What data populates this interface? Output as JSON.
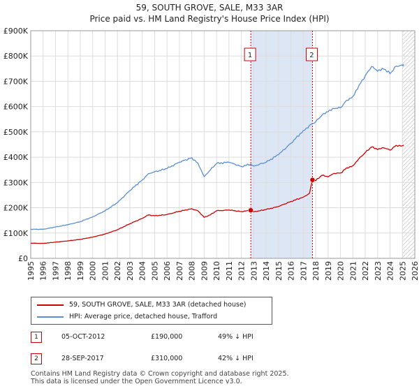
{
  "colors": {
    "property_line": "#cc0000",
    "hpi_line": "#5b8fd0",
    "shade": "#dce6f5",
    "grid": "#dddddd",
    "marker_border": "#cc0000"
  },
  "header": {
    "title_line1": "59, SOUTH GROVE, SALE, M33 3AR",
    "title_line2": "Price paid vs. HM Land Registry's House Price Index (HPI)"
  },
  "legend": {
    "property_label": "59, SOUTH GROVE, SALE, M33 3AR (detached house)",
    "hpi_label": "HPI: Average price, detached house, Trafford"
  },
  "transactions": [
    {
      "id": "1",
      "date": "05-OCT-2012",
      "price": "£190,000",
      "hpi_diff": "49% ↓ HPI"
    },
    {
      "id": "2",
      "date": "28-SEP-2017",
      "price": "£310,000",
      "hpi_diff": "42% ↓ HPI"
    }
  ],
  "footer": {
    "line1": "Contains HM Land Registry data © Crown copyright and database right 2025.",
    "line2": "This data is licensed under the Open Government Licence v3.0."
  },
  "chart_data": {
    "type": "line",
    "title": "Price paid vs. HM Land Registry's House Price Index (HPI)",
    "xlabel": "",
    "ylabel": "",
    "xlim": [
      1995,
      2026
    ],
    "ylim": [
      0,
      900000
    ],
    "x_ticks": [
      1995,
      1996,
      1997,
      1998,
      1999,
      2000,
      2001,
      2002,
      2003,
      2004,
      2005,
      2006,
      2007,
      2008,
      2009,
      2010,
      2011,
      2012,
      2013,
      2014,
      2015,
      2016,
      2017,
      2018,
      2019,
      2020,
      2021,
      2022,
      2023,
      2024,
      2025,
      2026
    ],
    "y_ticks": [
      {
        "value": 0,
        "label": "£0"
      },
      {
        "value": 100000,
        "label": "£100K"
      },
      {
        "value": 200000,
        "label": "£200K"
      },
      {
        "value": 300000,
        "label": "£300K"
      },
      {
        "value": 400000,
        "label": "£400K"
      },
      {
        "value": 500000,
        "label": "£500K"
      },
      {
        "value": 600000,
        "label": "£600K"
      },
      {
        "value": 700000,
        "label": "£700K"
      },
      {
        "value": 800000,
        "label": "£800K"
      },
      {
        "value": 900000,
        "label": "£900K"
      }
    ],
    "shaded_region": [
      2012.76,
      2017.74
    ],
    "forecast_start": 2025.0,
    "grid": true,
    "series": [
      {
        "name": "59, SOUTH GROVE, SALE, M33 3AR (detached house)",
        "points": [
          [
            1995.0,
            60000
          ],
          [
            1996.0,
            59000
          ],
          [
            1997.0,
            64000
          ],
          [
            1998.0,
            69000
          ],
          [
            1999.0,
            75000
          ],
          [
            2000.0,
            84000
          ],
          [
            2001.0,
            96000
          ],
          [
            2002.0,
            113000
          ],
          [
            2003.0,
            137000
          ],
          [
            2004.0,
            158000
          ],
          [
            2004.5,
            172000
          ],
          [
            2005.0,
            168000
          ],
          [
            2006.0,
            173000
          ],
          [
            2007.0,
            186000
          ],
          [
            2008.0,
            196000
          ],
          [
            2008.5,
            188000
          ],
          [
            2009.0,
            162000
          ],
          [
            2009.5,
            172000
          ],
          [
            2010.0,
            188000
          ],
          [
            2011.0,
            191000
          ],
          [
            2012.0,
            185000
          ],
          [
            2012.76,
            190000
          ],
          [
            2013.0,
            184000
          ],
          [
            2014.0,
            193000
          ],
          [
            2015.0,
            205000
          ],
          [
            2016.0,
            225000
          ],
          [
            2017.0,
            242000
          ],
          [
            2017.5,
            257000
          ],
          [
            2017.74,
            310000
          ],
          [
            2018.0,
            307000
          ],
          [
            2018.5,
            328000
          ],
          [
            2019.0,
            322000
          ],
          [
            2019.5,
            336000
          ],
          [
            2020.0,
            337000
          ],
          [
            2020.5,
            358000
          ],
          [
            2021.0,
            366000
          ],
          [
            2021.5,
            395000
          ],
          [
            2022.0,
            418000
          ],
          [
            2022.5,
            440000
          ],
          [
            2023.0,
            430000
          ],
          [
            2023.5,
            437000
          ],
          [
            2024.0,
            428000
          ],
          [
            2024.5,
            447000
          ],
          [
            2025.0,
            445000
          ],
          [
            2025.1,
            448000
          ]
        ]
      },
      {
        "name": "HPI: Average price, detached house, Trafford",
        "points": [
          [
            1995.0,
            115000
          ],
          [
            1996.0,
            115000
          ],
          [
            1997.0,
            124000
          ],
          [
            1998.0,
            133000
          ],
          [
            1999.0,
            145000
          ],
          [
            2000.0,
            164000
          ],
          [
            2001.0,
            188000
          ],
          [
            2002.0,
            220000
          ],
          [
            2003.0,
            268000
          ],
          [
            2004.0,
            310000
          ],
          [
            2004.5,
            335000
          ],
          [
            2005.0,
            342000
          ],
          [
            2006.0,
            355000
          ],
          [
            2007.0,
            380000
          ],
          [
            2008.0,
            398000
          ],
          [
            2008.5,
            376000
          ],
          [
            2009.0,
            323000
          ],
          [
            2009.5,
            350000
          ],
          [
            2010.0,
            375000
          ],
          [
            2011.0,
            380000
          ],
          [
            2012.0,
            363000
          ],
          [
            2012.76,
            373000
          ],
          [
            2013.0,
            365000
          ],
          [
            2014.0,
            380000
          ],
          [
            2015.0,
            410000
          ],
          [
            2016.0,
            455000
          ],
          [
            2017.0,
            505000
          ],
          [
            2017.74,
            533000
          ],
          [
            2018.0,
            540000
          ],
          [
            2018.5,
            565000
          ],
          [
            2019.0,
            580000
          ],
          [
            2019.5,
            592000
          ],
          [
            2020.0,
            595000
          ],
          [
            2020.5,
            625000
          ],
          [
            2021.0,
            640000
          ],
          [
            2021.5,
            685000
          ],
          [
            2022.0,
            722000
          ],
          [
            2022.5,
            758000
          ],
          [
            2023.0,
            740000
          ],
          [
            2023.5,
            748000
          ],
          [
            2024.0,
            730000
          ],
          [
            2024.5,
            760000
          ],
          [
            2025.0,
            765000
          ],
          [
            2025.1,
            768000
          ]
        ]
      }
    ],
    "markers": [
      {
        "label": "1",
        "x": 2012.76,
        "y": 190000
      },
      {
        "label": "2",
        "x": 2017.74,
        "y": 310000
      }
    ]
  }
}
